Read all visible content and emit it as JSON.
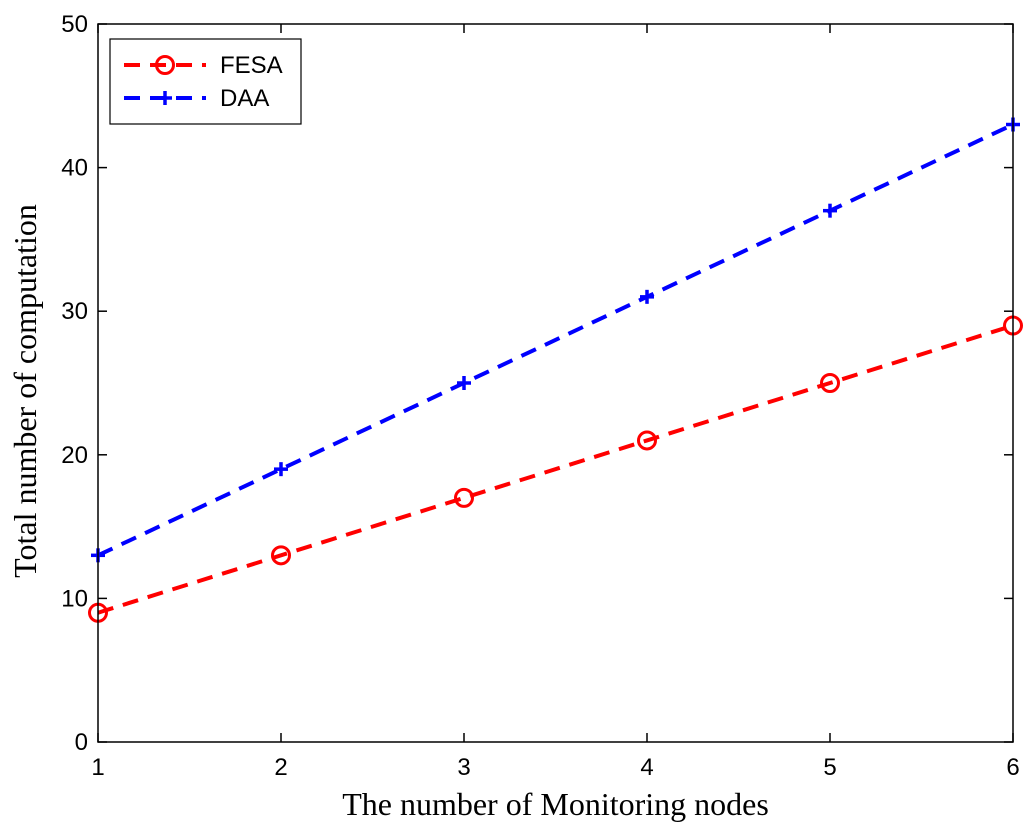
{
  "chart_data": {
    "type": "line",
    "title": "",
    "xlabel": "The number of Monitoring nodes",
    "ylabel": "Total number of computation",
    "x": [
      1,
      2,
      3,
      4,
      5,
      6
    ],
    "xlim": [
      1,
      6
    ],
    "ylim": [
      0,
      50
    ],
    "xticks": [
      1,
      2,
      3,
      4,
      5,
      6
    ],
    "yticks": [
      0,
      10,
      20,
      30,
      40,
      50
    ],
    "grid": false,
    "legend_position": "top-left",
    "series": [
      {
        "name": "FESA",
        "values": [
          9,
          13,
          17,
          21,
          25,
          29
        ],
        "color": "#ff0000",
        "marker": "circle",
        "linestyle": "dashed"
      },
      {
        "name": "DAA",
        "values": [
          13,
          19,
          25,
          31,
          37,
          43
        ],
        "color": "#0000ff",
        "marker": "plus",
        "linestyle": "dashed"
      }
    ]
  }
}
